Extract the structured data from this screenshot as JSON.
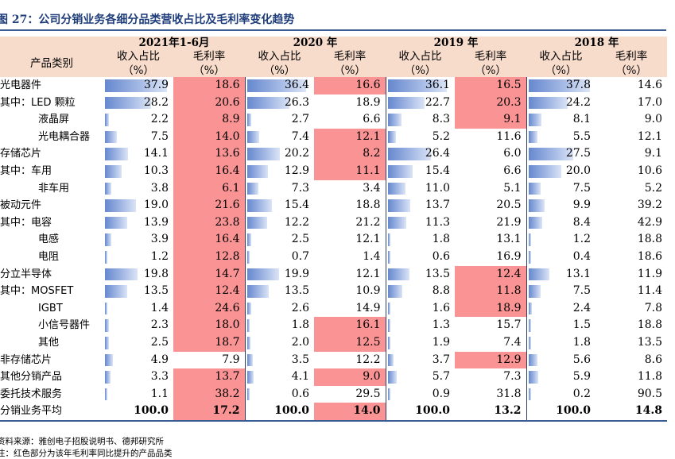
{
  "title": "图 27：公司分销业务各细分品类营收占比及毛利率变化趋势",
  "header": {
    "category_label": "产品类别",
    "years": [
      "2021年1-6月",
      "2020 年",
      "2019 年",
      "2018 年"
    ],
    "share_label": "收入占比",
    "margin_label": "毛利率",
    "unit_label": "（%）"
  },
  "rows": [
    {
      "label": "光电器件",
      "cells": [
        [
          "37.9",
          "18.6",
          false,
          true
        ],
        [
          "36.4",
          "16.6",
          false,
          true
        ],
        [
          "36.1",
          "16.5",
          false,
          true
        ],
        [
          "37.8",
          "14.6",
          false,
          false
        ]
      ]
    },
    {
      "label": "其中：LED 颗粒",
      "cells": [
        [
          "28.2",
          "20.6",
          false,
          true
        ],
        [
          "26.3",
          "18.9",
          false,
          false
        ],
        [
          "22.7",
          "20.3",
          false,
          true
        ],
        [
          "24.2",
          "17.0",
          false,
          false
        ]
      ]
    },
    {
      "label": "液晶屏",
      "indent": true,
      "cells": [
        [
          "2.2",
          "8.9",
          false,
          true
        ],
        [
          "2.7",
          "6.6",
          false,
          false
        ],
        [
          "8.3",
          "9.1",
          false,
          true
        ],
        [
          "8.1",
          "9.0",
          false,
          false
        ]
      ]
    },
    {
      "label": "光电耦合器",
      "indent": true,
      "cells": [
        [
          "7.5",
          "14.0",
          false,
          true
        ],
        [
          "7.4",
          "12.1",
          false,
          true
        ],
        [
          "5.2",
          "11.6",
          false,
          false
        ],
        [
          "5.5",
          "12.1",
          false,
          false
        ]
      ]
    },
    {
      "label": "存储芯片",
      "cells": [
        [
          "14.1",
          "13.6",
          false,
          true
        ],
        [
          "20.2",
          "8.2",
          false,
          true
        ],
        [
          "26.4",
          "6.0",
          false,
          false
        ],
        [
          "27.5",
          "9.1",
          false,
          false
        ]
      ]
    },
    {
      "label": "其中：车用",
      "cells": [
        [
          "10.3",
          "16.4",
          false,
          true
        ],
        [
          "12.9",
          "11.1",
          false,
          true
        ],
        [
          "15.4",
          "6.6",
          false,
          false
        ],
        [
          "20.0",
          "10.6",
          false,
          false
        ]
      ]
    },
    {
      "label": "非车用",
      "indent": true,
      "cells": [
        [
          "3.8",
          "6.1",
          false,
          true
        ],
        [
          "7.3",
          "3.4",
          false,
          false
        ],
        [
          "11.0",
          "5.1",
          false,
          false
        ],
        [
          "7.5",
          "5.2",
          false,
          false
        ]
      ]
    },
    {
      "label": "被动元件",
      "cells": [
        [
          "19.0",
          "21.6",
          false,
          true
        ],
        [
          "15.4",
          "18.8",
          false,
          false
        ],
        [
          "13.7",
          "20.5",
          false,
          false
        ],
        [
          "9.9",
          "39.2",
          false,
          false
        ]
      ]
    },
    {
      "label": "其中：电容",
      "cells": [
        [
          "13.9",
          "23.8",
          false,
          true
        ],
        [
          "12.2",
          "21.2",
          false,
          false
        ],
        [
          "11.3",
          "21.9",
          false,
          false
        ],
        [
          "8.4",
          "42.9",
          false,
          false
        ]
      ]
    },
    {
      "label": "电感",
      "indent": true,
      "cells": [
        [
          "3.9",
          "16.4",
          false,
          true
        ],
        [
          "2.5",
          "12.1",
          false,
          false
        ],
        [
          "1.8",
          "13.1",
          false,
          false
        ],
        [
          "1.2",
          "18.8",
          false,
          false
        ]
      ]
    },
    {
      "label": "电阻",
      "indent": true,
      "cells": [
        [
          "1.2",
          "12.8",
          false,
          true
        ],
        [
          "0.7",
          "1.4",
          false,
          false
        ],
        [
          "0.6",
          "16.9",
          false,
          false
        ],
        [
          "0.4",
          "18.6",
          false,
          false
        ]
      ]
    },
    {
      "label": "分立半导体",
      "cells": [
        [
          "19.8",
          "14.7",
          false,
          true
        ],
        [
          "19.9",
          "12.1",
          false,
          false
        ],
        [
          "13.5",
          "12.4",
          false,
          true
        ],
        [
          "13.1",
          "11.9",
          false,
          false
        ]
      ]
    },
    {
      "label": "其中：MOSFET",
      "cells": [
        [
          "13.5",
          "12.4",
          false,
          true
        ],
        [
          "13.5",
          "10.9",
          false,
          false
        ],
        [
          "8.8",
          "11.8",
          false,
          true
        ],
        [
          "7.5",
          "11.4",
          false,
          false
        ]
      ]
    },
    {
      "label": "IGBT",
      "indent": true,
      "cells": [
        [
          "1.4",
          "24.6",
          false,
          true
        ],
        [
          "2.6",
          "14.9",
          false,
          false
        ],
        [
          "1.6",
          "18.9",
          false,
          true
        ],
        [
          "2.4",
          "7.8",
          false,
          false
        ]
      ]
    },
    {
      "label": "小信号器件",
      "indent": true,
      "cells": [
        [
          "2.3",
          "18.0",
          false,
          true
        ],
        [
          "1.8",
          "16.1",
          false,
          true
        ],
        [
          "1.3",
          "15.7",
          false,
          false
        ],
        [
          "1.5",
          "18.8",
          false,
          false
        ]
      ]
    },
    {
      "label": "其他",
      "indent": true,
      "cells": [
        [
          "2.5",
          "18.7",
          false,
          true
        ],
        [
          "2.0",
          "12.5",
          false,
          true
        ],
        [
          "1.9",
          "7.4",
          false,
          false
        ],
        [
          "1.8",
          "13.5",
          false,
          false
        ]
      ]
    },
    {
      "label": "非存储芯片",
      "cells": [
        [
          "4.9",
          "7.9",
          false,
          false
        ],
        [
          "3.5",
          "12.2",
          false,
          false
        ],
        [
          "3.7",
          "12.9",
          false,
          true
        ],
        [
          "5.6",
          "8.6",
          false,
          false
        ]
      ]
    },
    {
      "label": "其他分销产品",
      "cells": [
        [
          "3.3",
          "13.7",
          false,
          true
        ],
        [
          "4.1",
          "9.0",
          false,
          true
        ],
        [
          "5.7",
          "7.3",
          false,
          false
        ],
        [
          "5.9",
          "11.8",
          false,
          false
        ]
      ]
    },
    {
      "label": "委托技术服务",
      "cells": [
        [
          "1.1",
          "38.2",
          false,
          true
        ],
        [
          "0.6",
          "29.5",
          false,
          false
        ],
        [
          "0.9",
          "31.8",
          false,
          false
        ],
        [
          "0.2",
          "90.5",
          false,
          false
        ]
      ]
    },
    {
      "label": "分销业务平均",
      "cells": [
        [
          "100.0",
          "17.2",
          false,
          true
        ],
        [
          "100.0",
          "14.0",
          false,
          true
        ],
        [
          "100.0",
          "13.2",
          false,
          false
        ],
        [
          "100.0",
          "14.8",
          false,
          false
        ]
      ]
    }
  ],
  "source": "资料来源：雅创电子招股说明书、德邦研究所",
  "note": "注：红色部分为该年毛利率同比提升的产品品类",
  "colors": {
    "highlight": "#f99394",
    "header_bg": "#f7dccc",
    "bar": "#6688cf",
    "title": "#1f3d7a"
  }
}
